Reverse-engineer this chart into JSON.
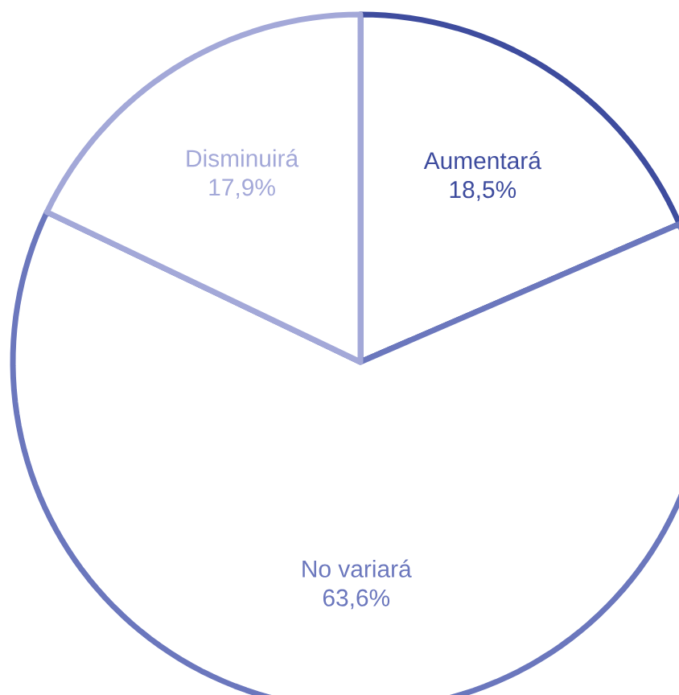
{
  "chart_data": {
    "type": "pie",
    "categories": [
      "Aumentará",
      "No variará",
      "Disminuirá"
    ],
    "values": [
      18.5,
      63.6,
      17.9
    ],
    "value_labels": [
      "18,5%",
      "63,6%",
      "17,9%"
    ],
    "colors": [
      "#3e4c9e",
      "#6b77bd",
      "#a3a8d8"
    ]
  }
}
